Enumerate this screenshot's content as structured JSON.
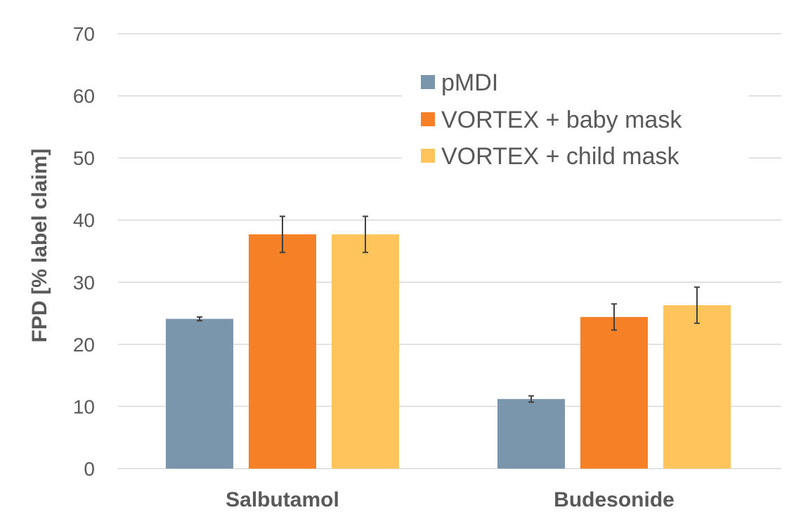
{
  "chart_data": {
    "type": "bar",
    "title": "",
    "xlabel": "",
    "ylabel": "FPD [% label claim]",
    "ylim": [
      0,
      70
    ],
    "yticks": [
      0,
      10,
      20,
      30,
      40,
      50,
      60,
      70
    ],
    "grid": true,
    "legend_position": "top-right",
    "categories": [
      "Salbutamol",
      "Budesonide"
    ],
    "series": [
      {
        "name": "pMDI",
        "color": "#7a96ad",
        "values": [
          24.1,
          11.2
        ],
        "errors": [
          0.3,
          0.5
        ]
      },
      {
        "name": "VORTEX + baby mask",
        "color": "#f58025",
        "values": [
          37.7,
          24.4
        ],
        "errors": [
          2.9,
          2.1
        ]
      },
      {
        "name": "VORTEX + child mask",
        "color": "#ffc55c",
        "values": [
          37.7,
          26.3
        ],
        "errors": [
          2.9,
          2.9
        ]
      }
    ]
  }
}
